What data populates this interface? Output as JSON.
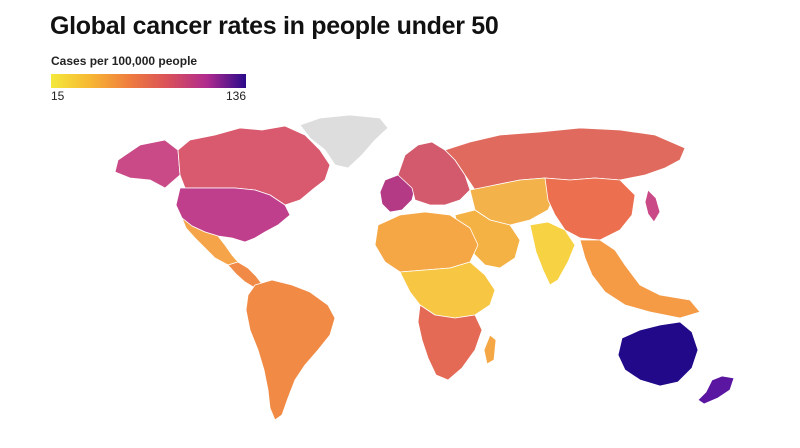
{
  "title": "Global cancer rates in people under 50",
  "legend": {
    "label": "Cases per 100,000 people",
    "min": "15",
    "max": "136",
    "gradient_colors": [
      "#f4e93b",
      "#f7b733",
      "#ef7d3e",
      "#d9515a",
      "#b02b8f",
      "#2a0a8a"
    ]
  },
  "region_colors": {
    "north_america": "#c94a86",
    "canada": "#d95a6e",
    "usa": "#bf3f8c",
    "greenland_no_data": "#dddddd",
    "mexico": "#f5a44a",
    "central_america": "#f28a47",
    "south_america": "#f08a45",
    "europe": "#d35a6c",
    "western_europe": "#b53a85",
    "russia": "#e06a5d",
    "central_asia": "#f4b34a",
    "middle_east": "#f5b244",
    "china": "#ec7050",
    "india": "#f7d242",
    "southeast_asia": "#f59a45",
    "japan": "#c94a86",
    "africa_north": "#f5a745",
    "africa_central": "#f7c744",
    "africa_south": "#e46a55",
    "australia": "#22098a",
    "new_zealand": "#5a16a0"
  }
}
